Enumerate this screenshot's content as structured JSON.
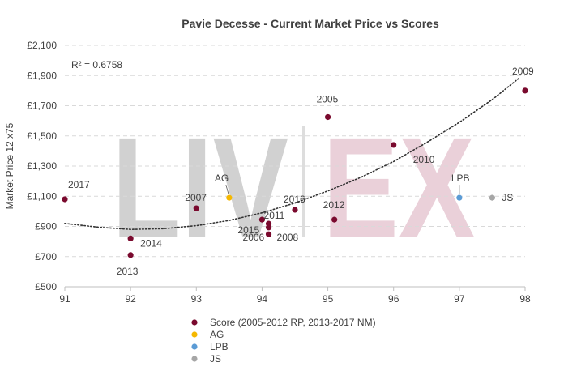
{
  "chart_data": {
    "type": "scatter",
    "title": "Pavie Decesse - Current Market Price vs Scores",
    "ylabel": "Market Price 12 x75",
    "xlabel": "",
    "xlim": [
      91,
      98
    ],
    "ylim": [
      500,
      2100
    ],
    "x_ticks": [
      91,
      92,
      93,
      94,
      95,
      96,
      97,
      98
    ],
    "y_ticks": [
      500,
      700,
      900,
      1100,
      1300,
      1500,
      1700,
      1900,
      2100
    ],
    "y_tick_labels": [
      "£500",
      "£700",
      "£900",
      "£1,100",
      "£1,300",
      "£1,500",
      "£1,700",
      "£1,900",
      "£2,100"
    ],
    "grid": "horizontal dashed",
    "r_squared_label": "R² = 0.6758",
    "watermark": {
      "left": "LIV",
      "right": "EX"
    },
    "legend_position": "bottom",
    "series": [
      {
        "name": "Score (2005-2012 RP, 2013-2017 NM)",
        "color": "#7a0a2e",
        "points": [
          {
            "x": 91.0,
            "y": 1080,
            "label": "2017"
          },
          {
            "x": 92.0,
            "y": 820,
            "label": "2014"
          },
          {
            "x": 92.0,
            "y": 710,
            "label": "2013"
          },
          {
            "x": 93.0,
            "y": 1020,
            "label": "2007"
          },
          {
            "x": 94.0,
            "y": 945,
            "label": "2015"
          },
          {
            "x": 94.1,
            "y": 918,
            "label": "2011"
          },
          {
            "x": 94.1,
            "y": 893,
            "label": "2008"
          },
          {
            "x": 94.1,
            "y": 848,
            "label": "2006"
          },
          {
            "x": 94.5,
            "y": 1010,
            "label": "2016"
          },
          {
            "x": 95.0,
            "y": 1625,
            "label": "2005"
          },
          {
            "x": 95.1,
            "y": 945,
            "label": "2012"
          },
          {
            "x": 96.0,
            "y": 1440,
            "label": "2010"
          },
          {
            "x": 98.0,
            "y": 1800,
            "label": "2009"
          }
        ]
      },
      {
        "name": "AG",
        "color": "#f5b800",
        "points": [
          {
            "x": 93.5,
            "y": 1090,
            "label": "AG"
          }
        ]
      },
      {
        "name": "LPB",
        "color": "#5b9bd5",
        "points": [
          {
            "x": 97.0,
            "y": 1090,
            "label": "LPB"
          }
        ]
      },
      {
        "name": "JS",
        "color": "#a6a6a6",
        "points": [
          {
            "x": 97.5,
            "y": 1090,
            "label": "JS"
          }
        ]
      }
    ],
    "trendline": {
      "style": "dotted",
      "color": "#333333",
      "points": [
        {
          "x": 91.0,
          "y": 920
        },
        {
          "x": 91.5,
          "y": 895
        },
        {
          "x": 92.0,
          "y": 880
        },
        {
          "x": 92.5,
          "y": 885
        },
        {
          "x": 93.0,
          "y": 905
        },
        {
          "x": 93.5,
          "y": 940
        },
        {
          "x": 94.0,
          "y": 990
        },
        {
          "x": 94.5,
          "y": 1055
        },
        {
          "x": 95.0,
          "y": 1135
        },
        {
          "x": 95.5,
          "y": 1225
        },
        {
          "x": 96.0,
          "y": 1330
        },
        {
          "x": 96.5,
          "y": 1455
        },
        {
          "x": 97.0,
          "y": 1590
        },
        {
          "x": 97.5,
          "y": 1740
        },
        {
          "x": 97.9,
          "y": 1880
        }
      ]
    }
  }
}
